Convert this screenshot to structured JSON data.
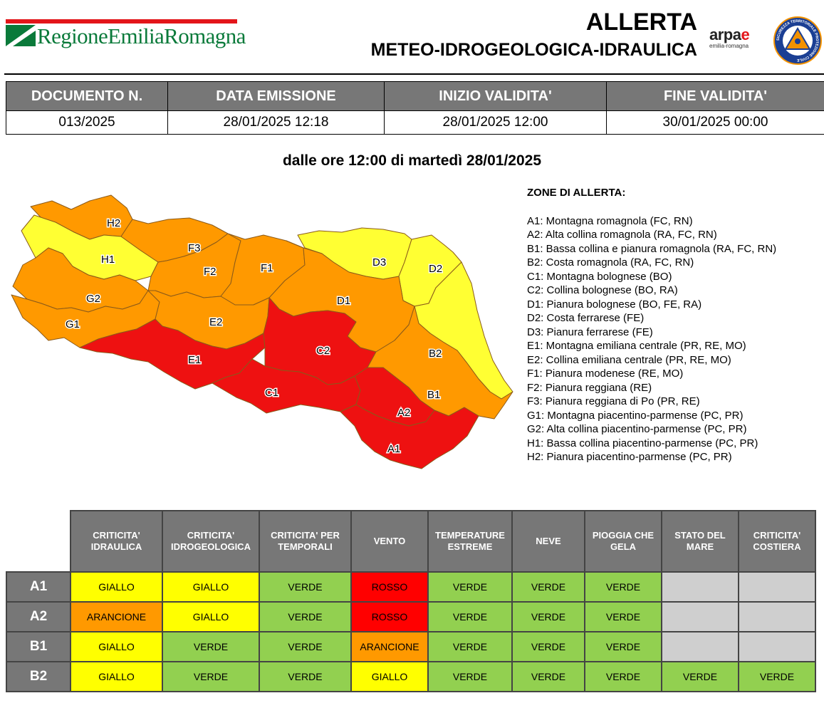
{
  "header": {
    "logo_text": "RegioneEmiliaRomagna",
    "title_line1": "ALLERTA",
    "title_line2": "METEO-IDROGEOLOGICA-IDRAULICA",
    "arpae_word": "arpae",
    "arpae_sub": "emilia-romagna",
    "pc_logo_text": "SICUREZZA TERRITORIALE PROTEZIONE CIVILE",
    "colors": {
      "brand_red": "#e3151a",
      "brand_green": "#0a7a3a",
      "pc_blue": "#1b3f94",
      "pc_orange": "#f39200"
    }
  },
  "doc_info": {
    "headers": [
      "DOCUMENTO N.",
      "DATA EMISSIONE",
      "INIZIO VALIDITA'",
      "FINE VALIDITA'"
    ],
    "values": [
      "013/2025",
      "28/01/2025 12:18",
      "28/01/2025 12:00",
      "30/01/2025 00:00"
    ]
  },
  "date_line": "dalle ore 12:00 di martedì 28/01/2025",
  "map": {
    "colors": {
      "GIALLO": "#ffff33",
      "ARANCIONE": "#ff9900",
      "ROSSO": "#ee1111",
      "border": "#8a5a1a"
    },
    "zone_levels": {
      "H2": "ARANCIONE",
      "H1": "GIALLO",
      "G2": "ARANCIONE",
      "G1": "ARANCIONE",
      "F3": "ARANCIONE",
      "F2": "ARANCIONE",
      "F1": "ARANCIONE",
      "E2": "ARANCIONE",
      "E1": "ROSSO",
      "D3": "GIALLO",
      "D2": "GIALLO",
      "D1": "ARANCIONE",
      "C2": "ROSSO",
      "C1": "ROSSO",
      "B2": "GIALLO",
      "B1": "ARANCIONE",
      "A2": "ROSSO",
      "A1": "ROSSO"
    },
    "labels": [
      "H2",
      "H1",
      "G2",
      "G1",
      "F3",
      "F2",
      "F1",
      "E2",
      "E1",
      "D3",
      "D2",
      "D1",
      "C2",
      "C1",
      "B2",
      "B1",
      "A2",
      "A1"
    ]
  },
  "zones": {
    "title": "ZONE DI ALLERTA:",
    "items": [
      "A1: Montagna romagnola (FC, RN)",
      "A2: Alta collina romagnola (RA, FC, RN)",
      "B1: Bassa collina e pianura romagnola (RA, FC, RN)",
      "B2: Costa romagnola (RA, FC, RN)",
      "C1: Montagna bolognese (BO)",
      "C2: Collina bolognese (BO, RA)",
      "D1: Pianura bolognese (BO, FE, RA)",
      "D2: Costa ferrarese (FE)",
      "D3: Pianura ferrarese (FE)",
      "E1: Montagna emiliana centrale (PR, RE, MO)",
      "E2: Collina emiliana centrale (PR, RE, MO)",
      "F1: Pianura modenese (RE, MO)",
      "F2: Pianura reggiana (RE)",
      "F3: Pianura reggiana di Po (PR, RE)",
      "G1: Montagna piacentino-parmense (PC, PR)",
      "G2: Alta collina piacentino-parmense (PC, PR)",
      "H1: Bassa collina piacentino-parmense (PC, PR)",
      "H2: Pianura piacentino-parmense (PC, PR)"
    ]
  },
  "alert_table": {
    "columns": [
      [
        "CRITICITA'",
        "IDRAULICA"
      ],
      [
        "CRITICITA'",
        "IDROGEOLOGICA"
      ],
      [
        "CRITICITA' PER",
        "TEMPORALI"
      ],
      [
        "VENTO"
      ],
      [
        "TEMPERATURE",
        "ESTREME"
      ],
      [
        "NEVE"
      ],
      [
        "PIOGGIA CHE",
        "GELA"
      ],
      [
        "STATO DEL",
        "MARE"
      ],
      [
        "CRITICITA'",
        "COSTIERA"
      ]
    ],
    "rows": [
      {
        "zone": "A1",
        "values": [
          "GIALLO",
          "GIALLO",
          "VERDE",
          "ROSSO",
          "VERDE",
          "VERDE",
          "VERDE",
          "",
          ""
        ]
      },
      {
        "zone": "A2",
        "values": [
          "ARANCIONE",
          "GIALLO",
          "VERDE",
          "ROSSO",
          "VERDE",
          "VERDE",
          "VERDE",
          "",
          ""
        ]
      },
      {
        "zone": "B1",
        "values": [
          "GIALLO",
          "VERDE",
          "VERDE",
          "ARANCIONE",
          "VERDE",
          "VERDE",
          "VERDE",
          "",
          ""
        ]
      },
      {
        "zone": "B2",
        "values": [
          "GIALLO",
          "VERDE",
          "VERDE",
          "GIALLO",
          "VERDE",
          "VERDE",
          "VERDE",
          "VERDE",
          "VERDE"
        ]
      }
    ],
    "level_colors": {
      "GIALLO": "#ffff00",
      "VERDE": "#92d050",
      "ROSSO": "#ff0000",
      "ARANCIONE": "#ff9900",
      "none": "#cfcfcf"
    }
  }
}
